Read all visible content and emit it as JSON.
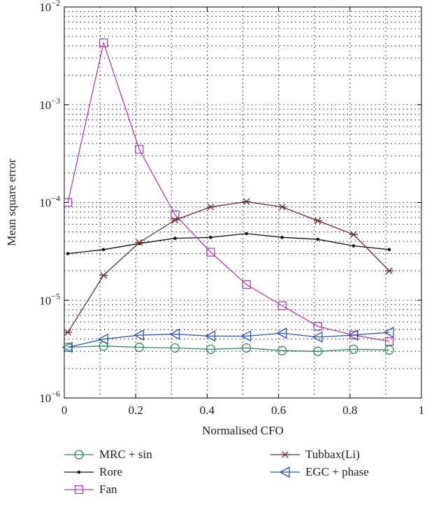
{
  "chart_data": {
    "type": "line",
    "title": "",
    "xlabel": "Normalised CFO",
    "ylabel": "Mean square error",
    "xlim": [
      0,
      1
    ],
    "ylim": [
      1e-06,
      0.01
    ],
    "yscale": "log",
    "grid": true,
    "x_ticks": [
      "0",
      "0.2",
      "0.4",
      "0.6",
      "0.8",
      "1"
    ],
    "y_ticks": [
      {
        "base": "10",
        "exp": "−6"
      },
      {
        "base": "10",
        "exp": "−5"
      },
      {
        "base": "10",
        "exp": "−4"
      },
      {
        "base": "10",
        "exp": "−3"
      },
      {
        "base": "10",
        "exp": "−2"
      }
    ],
    "x": [
      0.01,
      0.11,
      0.21,
      0.31,
      0.41,
      0.51,
      0.61,
      0.71,
      0.81,
      0.91
    ],
    "series": [
      {
        "name": "MRC + sin",
        "color": "#2e8b57",
        "marker": "circle",
        "values": [
          3.3e-06,
          3.4e-06,
          3.3e-06,
          3.25e-06,
          3.15e-06,
          3.25e-06,
          3.05e-06,
          3e-06,
          3.15e-06,
          3.1e-06
        ]
      },
      {
        "name": "Rore",
        "color": "#111111",
        "marker": "dot",
        "values": [
          3e-05,
          3.3e-05,
          3.8e-05,
          4.3e-05,
          4.4e-05,
          4.8e-05,
          4.4e-05,
          4.2e-05,
          3.6e-05,
          3.3e-05
        ]
      },
      {
        "name": "Fan",
        "color": "#b040b0",
        "marker": "square",
        "values": [
          0.0001,
          0.0043,
          0.00035,
          7.5e-05,
          3.1e-05,
          1.45e-05,
          8.8e-06,
          5.4e-06,
          4.4e-06,
          3.8e-06
        ]
      },
      {
        "name": "Tubbax(Li)",
        "color": "#6b3030",
        "marker": "star",
        "values": [
          4.7e-06,
          1.8e-05,
          3.9e-05,
          6.6e-05,
          9e-05,
          0.000102,
          9e-05,
          6.5e-05,
          4.7e-05,
          2e-05
        ]
      },
      {
        "name": "EGC + phase",
        "color": "#3050b0",
        "marker": "triangle-left",
        "values": [
          3.3e-06,
          4e-06,
          4.4e-06,
          4.5e-06,
          4.3e-06,
          4.3e-06,
          4.6e-06,
          4.2e-06,
          4.4e-06,
          4.7e-06
        ]
      }
    ],
    "legend_order": [
      0,
      3,
      1,
      4,
      2
    ],
    "legend_placement": "bottom"
  }
}
